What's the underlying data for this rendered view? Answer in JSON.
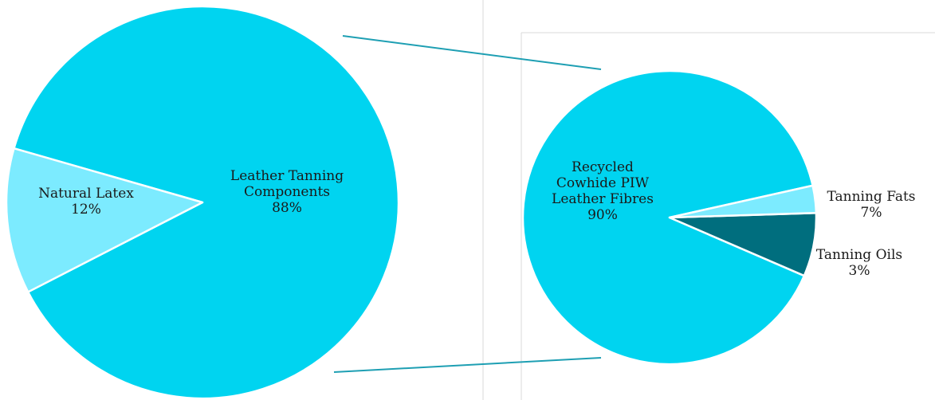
{
  "chart_data": [
    {
      "type": "pie",
      "title": "",
      "slices": [
        {
          "label_lines": [
            "Leather Tanning",
            "Components"
          ],
          "value_label": "88%",
          "value": 88,
          "color": "#00d4f0"
        },
        {
          "label_lines": [
            "Natural Latex"
          ],
          "value_label": "12%",
          "value": 12,
          "color": "#7cebff"
        }
      ]
    },
    {
      "type": "pie",
      "title": "",
      "slices": [
        {
          "label_lines": [
            "Recycled",
            "Cowhide PIW",
            "Leather Fibres"
          ],
          "value_label": "90%",
          "value": 90,
          "color": "#00d4f0"
        },
        {
          "label_lines": [
            "Tanning Fats"
          ],
          "value_label": "7%",
          "value": 7,
          "color": "#006e7e"
        },
        {
          "label_lines": [
            "Tanning Oils"
          ],
          "value_label": "3%",
          "value": 3,
          "color": "#7cebff"
        }
      ]
    }
  ],
  "colors": {
    "connector": "#1e9fb3",
    "divider": "#d9d9d9",
    "slice_border": "#ffffff"
  }
}
